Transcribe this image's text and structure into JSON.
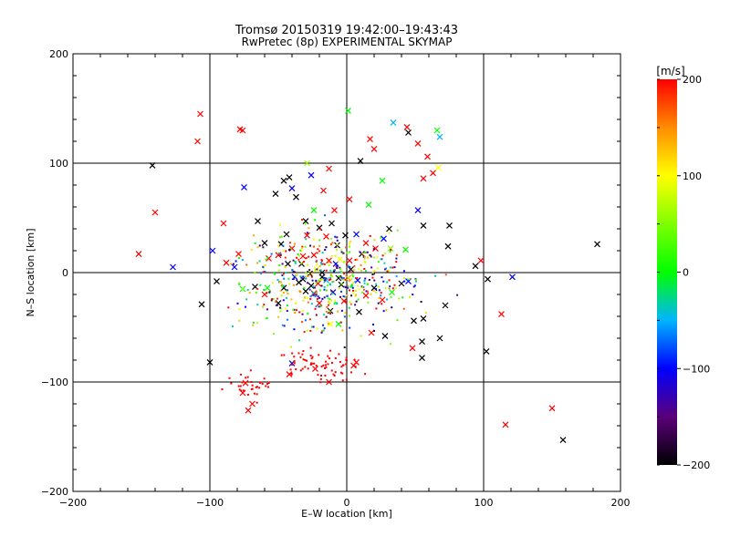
{
  "chart_data": {
    "type": "scatter",
    "title": "Tromsø 20150319 19:42:00–19:43:43",
    "subtitle": "RwPretec (8p) EXPERIMENTAL SKYMAP",
    "xlabel": "E–W location [km]",
    "ylabel": "N–S location [km]",
    "xlim": [
      -200,
      200
    ],
    "ylim": [
      -200,
      200
    ],
    "x_ticks": [
      -200,
      -100,
      0,
      100,
      200
    ],
    "y_ticks": [
      -200,
      -100,
      0,
      100,
      200
    ],
    "grid": true,
    "colorbar": {
      "label": "[m/s]",
      "min": -200,
      "max": 200,
      "ticks": [
        -200,
        -100,
        0,
        100,
        200
      ]
    },
    "marker_styles": [
      "cross",
      "dot"
    ],
    "points": [
      [
        -107,
        145,
        200,
        "x"
      ],
      [
        -109,
        120,
        200,
        "x"
      ],
      [
        -78,
        131,
        200,
        "x"
      ],
      [
        -76,
        130,
        200,
        "x"
      ],
      [
        -142,
        98,
        -200,
        "x"
      ],
      [
        -140,
        55,
        200,
        "x"
      ],
      [
        -152,
        17,
        200,
        "x"
      ],
      [
        -127,
        5,
        -100,
        "x"
      ],
      [
        -98,
        20,
        -100,
        "x"
      ],
      [
        -95,
        -8,
        -200,
        "x"
      ],
      [
        -106,
        -29,
        -200,
        "x"
      ],
      [
        -100,
        -82,
        -200,
        "x"
      ],
      [
        -90,
        45,
        200,
        "x"
      ],
      [
        -88,
        9,
        200,
        "x"
      ],
      [
        -82,
        5,
        -100,
        "x"
      ],
      [
        -79,
        17,
        200,
        "x"
      ],
      [
        -75,
        78,
        -100,
        "x"
      ],
      [
        -65,
        47,
        -200,
        "x"
      ],
      [
        -60,
        27,
        -200,
        "x"
      ],
      [
        -57,
        13,
        200,
        "x"
      ],
      [
        -52,
        72,
        -200,
        "x"
      ],
      [
        -46,
        84,
        -200,
        "x"
      ],
      [
        -42,
        87,
        -200,
        "x"
      ],
      [
        -40,
        77,
        -100,
        "x"
      ],
      [
        -37,
        69,
        -200,
        "x"
      ],
      [
        -29,
        100,
        60,
        "x"
      ],
      [
        -26,
        89,
        -100,
        "x"
      ],
      [
        -13,
        95,
        200,
        "x"
      ],
      [
        -17,
        75,
        200,
        "x"
      ],
      [
        -24,
        57,
        0,
        "x"
      ],
      [
        -30,
        47,
        -200,
        "x"
      ],
      [
        -9,
        57,
        200,
        "x"
      ],
      [
        1,
        148,
        0,
        "x"
      ],
      [
        2,
        67,
        200,
        "x"
      ],
      [
        10,
        102,
        -200,
        "x"
      ],
      [
        17,
        122,
        200,
        "x"
      ],
      [
        20,
        113,
        200,
        "x"
      ],
      [
        34,
        137,
        -50,
        "x"
      ],
      [
        44,
        133,
        200,
        "x"
      ],
      [
        45,
        128,
        -200,
        "x"
      ],
      [
        52,
        118,
        200,
        "x"
      ],
      [
        59,
        106,
        200,
        "x"
      ],
      [
        66,
        130,
        0,
        "x"
      ],
      [
        68,
        124,
        -50,
        "x"
      ],
      [
        56,
        86,
        200,
        "x"
      ],
      [
        63,
        91,
        200,
        "x"
      ],
      [
        67,
        96,
        100,
        "x"
      ],
      [
        26,
        84,
        0,
        "x"
      ],
      [
        16,
        62,
        0,
        "x"
      ],
      [
        31,
        40,
        -200,
        "x"
      ],
      [
        52,
        57,
        -100,
        "x"
      ],
      [
        56,
        43,
        -200,
        "x"
      ],
      [
        75,
        43,
        -200,
        "x"
      ],
      [
        74,
        24,
        -200,
        "x"
      ],
      [
        94,
        6,
        -200,
        "x"
      ],
      [
        98,
        11,
        200,
        "x"
      ],
      [
        103,
        -6,
        -200,
        "x"
      ],
      [
        121,
        -4,
        -100,
        "x"
      ],
      [
        113,
        -38,
        200,
        "x"
      ],
      [
        102,
        -72,
        -200,
        "x"
      ],
      [
        183,
        26,
        -200,
        "x"
      ],
      [
        150,
        -124,
        200,
        "x"
      ],
      [
        158,
        -153,
        -200,
        "x"
      ],
      [
        116,
        -139,
        200,
        "x"
      ],
      [
        -76,
        -110,
        200,
        "x"
      ],
      [
        -74,
        -101,
        200,
        "x"
      ],
      [
        -69,
        -120,
        200,
        "x"
      ],
      [
        -72,
        -126,
        200,
        "x"
      ],
      [
        -40,
        -83,
        -100,
        "x"
      ],
      [
        -42,
        -93,
        200,
        "x"
      ],
      [
        -23,
        -88,
        200,
        "x"
      ],
      [
        -13,
        -100,
        200,
        "x"
      ],
      [
        5,
        -85,
        200,
        "x"
      ],
      [
        7,
        -82,
        200,
        "x"
      ],
      [
        48,
        -69,
        200,
        "x"
      ],
      [
        55,
        -63,
        -200,
        "x"
      ],
      [
        55,
        -78,
        -200,
        "x"
      ],
      [
        28,
        -58,
        -200,
        "x"
      ],
      [
        18,
        -55,
        200,
        "x"
      ],
      [
        68,
        -60,
        -200,
        "x"
      ],
      [
        56,
        -42,
        -200,
        "x"
      ],
      [
        49,
        -44,
        -200,
        "x"
      ],
      [
        72,
        -30,
        -200,
        "x"
      ],
      [
        -50,
        -28,
        -200,
        "x"
      ],
      [
        -76,
        -15,
        0,
        "x"
      ],
      [
        -67,
        -13,
        -200,
        "x"
      ],
      [
        -58,
        -14,
        0,
        "x"
      ],
      [
        -46,
        -14,
        -200,
        "x"
      ],
      [
        -20,
        -28,
        200,
        "x"
      ],
      [
        -12,
        -35,
        -200,
        "x"
      ],
      [
        -12,
        -47,
        100,
        "x"
      ],
      [
        -6,
        -47,
        0,
        "x"
      ],
      [
        -29,
        34,
        200,
        "x"
      ],
      [
        -40,
        22,
        200,
        "x"
      ],
      [
        -24,
        16,
        200,
        "x"
      ],
      [
        -33,
        8,
        -200,
        "x"
      ],
      [
        -22,
        3,
        100,
        "x"
      ],
      [
        -18,
        0,
        -200,
        "x"
      ],
      [
        -13,
        11,
        200,
        "x"
      ],
      [
        -8,
        8,
        -100,
        "x"
      ],
      [
        -5,
        12,
        100,
        "x"
      ],
      [
        7,
        35,
        -100,
        "x"
      ],
      [
        14,
        27,
        200,
        "x"
      ],
      [
        21,
        22,
        200,
        "x"
      ],
      [
        27,
        31,
        -100,
        "x"
      ],
      [
        32,
        22,
        50,
        "x"
      ],
      [
        43,
        21,
        0,
        "x"
      ],
      [
        -38,
        -4,
        -100,
        "x"
      ],
      [
        -32,
        -6,
        -200,
        "x"
      ],
      [
        -26,
        -12,
        -200,
        "x"
      ],
      [
        -21,
        -10,
        200,
        "x"
      ],
      [
        -15,
        -7,
        -50,
        "x"
      ],
      [
        -10,
        -18,
        -100,
        "x"
      ],
      [
        -4,
        -11,
        -200,
        "x"
      ],
      [
        1,
        -5,
        150,
        "x"
      ],
      [
        8,
        -7,
        -100,
        "x"
      ],
      [
        14,
        -21,
        200,
        "x"
      ],
      [
        20,
        -14,
        -200,
        "x"
      ],
      [
        26,
        -25,
        200,
        "x"
      ],
      [
        33,
        -18,
        0,
        "x"
      ],
      [
        40,
        -10,
        -200,
        "x"
      ],
      [
        45,
        -8,
        -100,
        "x"
      ],
      [
        -30,
        -17,
        -200,
        "x"
      ],
      [
        -24,
        -19,
        200,
        "x"
      ],
      [
        -35,
        -9,
        -200,
        "x"
      ],
      [
        -18,
        -4,
        -200,
        "x"
      ],
      [
        3,
        3,
        -200,
        "x"
      ],
      [
        -2,
        -26,
        200,
        "x"
      ],
      [
        9,
        -36,
        -200,
        "x"
      ],
      [
        -44,
        35,
        -200,
        "x"
      ],
      [
        -50,
        16,
        200,
        "x"
      ],
      [
        -60,
        -20,
        200,
        "x"
      ],
      [
        -48,
        26,
        -200,
        "x"
      ],
      [
        -43,
        8,
        -200,
        "x"
      ],
      [
        -32,
        15,
        200,
        "x"
      ],
      [
        -1,
        34,
        -200,
        "x"
      ],
      [
        -7,
        25,
        -200,
        "x"
      ],
      [
        -15,
        33,
        200,
        "x"
      ],
      [
        -11,
        45,
        -200,
        "x"
      ],
      [
        -20,
        41,
        -200,
        "x"
      ],
      [
        -6,
        -5,
        -200,
        "x"
      ],
      [
        2,
        11,
        200,
        "x"
      ],
      [
        11,
        17,
        -200,
        "x"
      ],
      [
        -27,
        -1,
        -200,
        "x"
      ]
    ]
  }
}
